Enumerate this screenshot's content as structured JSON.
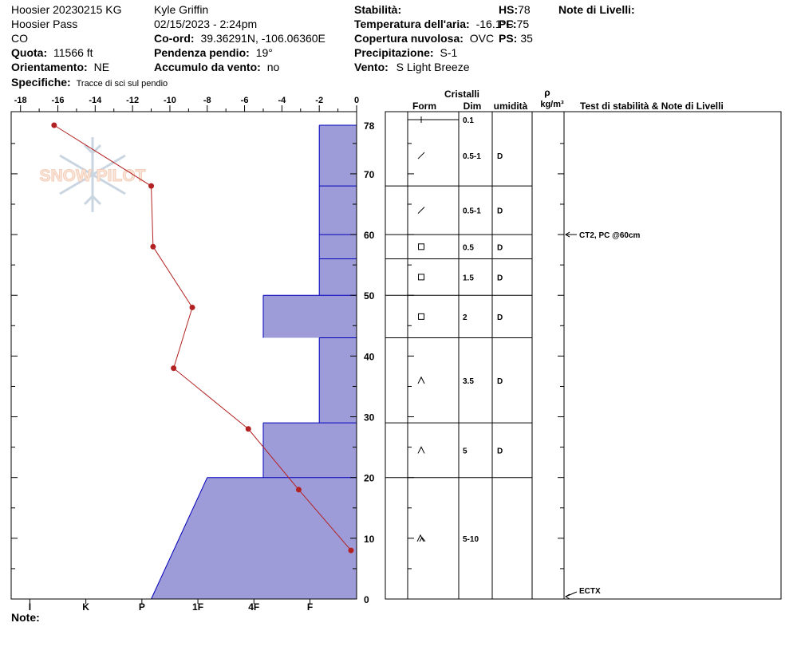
{
  "header": {
    "col1": {
      "line1": "Hoosier 20230215 KG",
      "line2": "Hoosier Pass",
      "line3": "CO",
      "elevation_label": "Quota:",
      "elevation_value": "11566 ft",
      "aspect_label": "Orientamento:",
      "aspect_value": "NE",
      "specifics_label": "Specifiche:",
      "specifics_value": "Tracce di sci sul pendio"
    },
    "col2": {
      "observer": "Kyle Griffin",
      "datetime": "02/15/2023 - 2:24pm",
      "coord_label": "Co-ord:",
      "coord_value": "39.36291N, -106.06360E",
      "slope_label": "Pendenza pendio:",
      "slope_value": "19°",
      "wind_load_label": "Accumulo da vento:",
      "wind_load_value": "no"
    },
    "col3": {
      "stability_label": "Stabilità:",
      "air_temp_label": "Temperatura dell'aria:",
      "air_temp_value": "-16.1°C",
      "cloud_label": "Copertura nuvolosa:",
      "cloud_value": "OVC",
      "precip_label": "Precipitazione:",
      "precip_value": "S-1",
      "wind_label": "Vento:",
      "wind_value": "S Light Breeze"
    },
    "col4": {
      "hs_label": "HS:",
      "hs_value": "78",
      "pf_label": "PF:",
      "pf_value": "75",
      "ps_label": "PS:",
      "ps_value": "35"
    },
    "col5": {
      "layer_notes_label": "Note di Livelli:"
    }
  },
  "watermark": "SNOW PILOT",
  "footer": {
    "note_label": "Note:"
  },
  "table_headers": {
    "crystals": "Cristalli",
    "form": "Form",
    "dim": "Dim",
    "moisture": "umidità",
    "rho": "ρ",
    "density_unit": "kg/m³",
    "stability_notes": "Test di stabilità & Note di Livelli"
  },
  "chart_data": {
    "type": "snow_profile",
    "temperature_axis": {
      "ticks": [
        -18,
        -16,
        -14,
        -12,
        -10,
        -8,
        -6,
        -4,
        -2,
        0
      ],
      "tick_labels": [
        "-18",
        "-16",
        "-14",
        "-12",
        "-10",
        "-8",
        "-6",
        "-4",
        "-2",
        "0"
      ],
      "range": [
        -18.5,
        0
      ]
    },
    "height_axis": {
      "range": [
        0,
        78
      ],
      "ticks": [
        0,
        10,
        20,
        30,
        40,
        50,
        60,
        70,
        78
      ],
      "tick_labels": [
        "0",
        "10",
        "20",
        "30",
        "40",
        "50",
        "60",
        "70",
        "78"
      ]
    },
    "hardness_axis": {
      "labels": [
        "I",
        "K",
        "P",
        "1F",
        "4F",
        "F"
      ],
      "positions": [
        -17.5,
        -14.5,
        -11.5,
        -8.5,
        -5.5,
        -2.5
      ]
    },
    "temperature_profile": [
      {
        "height": 78,
        "temp": -16.2
      },
      {
        "height": 68,
        "temp": -11.0
      },
      {
        "height": 58,
        "temp": -10.9
      },
      {
        "height": 48,
        "temp": -8.8
      },
      {
        "height": 38,
        "temp": -9.8
      },
      {
        "height": 28,
        "temp": -5.8
      },
      {
        "height": 18,
        "temp": -3.1
      },
      {
        "height": 8,
        "temp": -0.3
      }
    ],
    "hardness_profile": [
      {
        "bottom": 68,
        "top": 78,
        "hardness_bottom": "F",
        "hardness_top": "F"
      },
      {
        "bottom": 60,
        "top": 68,
        "hardness_bottom": "F",
        "hardness_top": "F"
      },
      {
        "bottom": 56,
        "top": 60,
        "hardness_bottom": "F",
        "hardness_top": "F"
      },
      {
        "bottom": 50,
        "top": 56,
        "hardness_bottom": "F",
        "hardness_top": "F"
      },
      {
        "bottom": 43,
        "top": 50,
        "hardness_bottom": "4F",
        "hardness_top": "4F"
      },
      {
        "bottom": 29,
        "top": 43,
        "hardness_bottom": "F",
        "hardness_top": "F"
      },
      {
        "bottom": 20,
        "top": 29,
        "hardness_bottom": "4F",
        "hardness_top": "4F"
      },
      {
        "bottom": 0,
        "top": 20,
        "hardness_bottom": "P",
        "hardness_top": "1F"
      }
    ],
    "hardness_values": {
      "F": -2,
      "4F": -5,
      "1F": -8,
      "P": -11
    },
    "layers": [
      {
        "bottom": 78,
        "top": 78,
        "form": "+",
        "dim": "0.1",
        "moisture": ""
      },
      {
        "bottom": 68,
        "top": 78,
        "form": "/",
        "dim": "0.5-1",
        "moisture": "D"
      },
      {
        "bottom": 60,
        "top": 68,
        "form": "/",
        "dim": "0.5-1",
        "moisture": "D"
      },
      {
        "bottom": 56,
        "top": 60,
        "form": "□",
        "dim": "0.5",
        "moisture": "D"
      },
      {
        "bottom": 50,
        "top": 56,
        "form": "□",
        "dim": "1.5",
        "moisture": "D"
      },
      {
        "bottom": 43,
        "top": 50,
        "form": "□",
        "dim": "2",
        "moisture": "D"
      },
      {
        "bottom": 29,
        "top": 43,
        "form": "^",
        "dim": "3.5",
        "moisture": "D"
      },
      {
        "bottom": 20,
        "top": 29,
        "form": "^",
        "dim": "5",
        "moisture": "D"
      },
      {
        "bottom": 0,
        "top": 20,
        "form": "^^",
        "dim": "5-10",
        "moisture": ""
      }
    ],
    "stability_tests": [
      {
        "height": 60,
        "text": "CT2, PC @60cm"
      },
      {
        "height": 0,
        "text": "ECTX"
      }
    ]
  },
  "colors": {
    "hardness_fill": "#9d9bd8",
    "hardness_stroke": "#0000bb",
    "temp_line": "#b22222",
    "grid": "#000000"
  }
}
